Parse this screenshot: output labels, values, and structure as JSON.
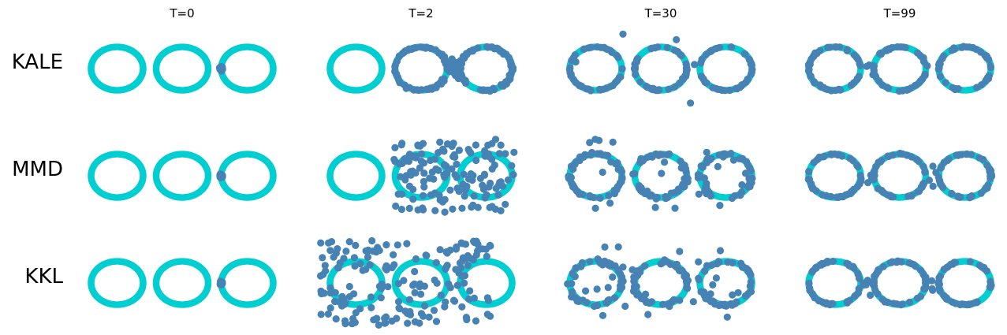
{
  "chart_data": {
    "type": "scatter",
    "columns": [
      "T=0",
      "T=2",
      "T=30",
      "T=99"
    ],
    "rows": [
      "KALE",
      "MMD",
      "KKL"
    ],
    "target": {
      "shape": "three rings",
      "ring_centers_x": [
        -3,
        0,
        3
      ],
      "ring_center_y": 0,
      "ring_radius_x": 1.2,
      "ring_radius_y": 1.0,
      "color": "#00CED1"
    },
    "particles": {
      "color": "#4682B4",
      "count": 140
    },
    "axes_visible": false,
    "grid": false
  }
}
